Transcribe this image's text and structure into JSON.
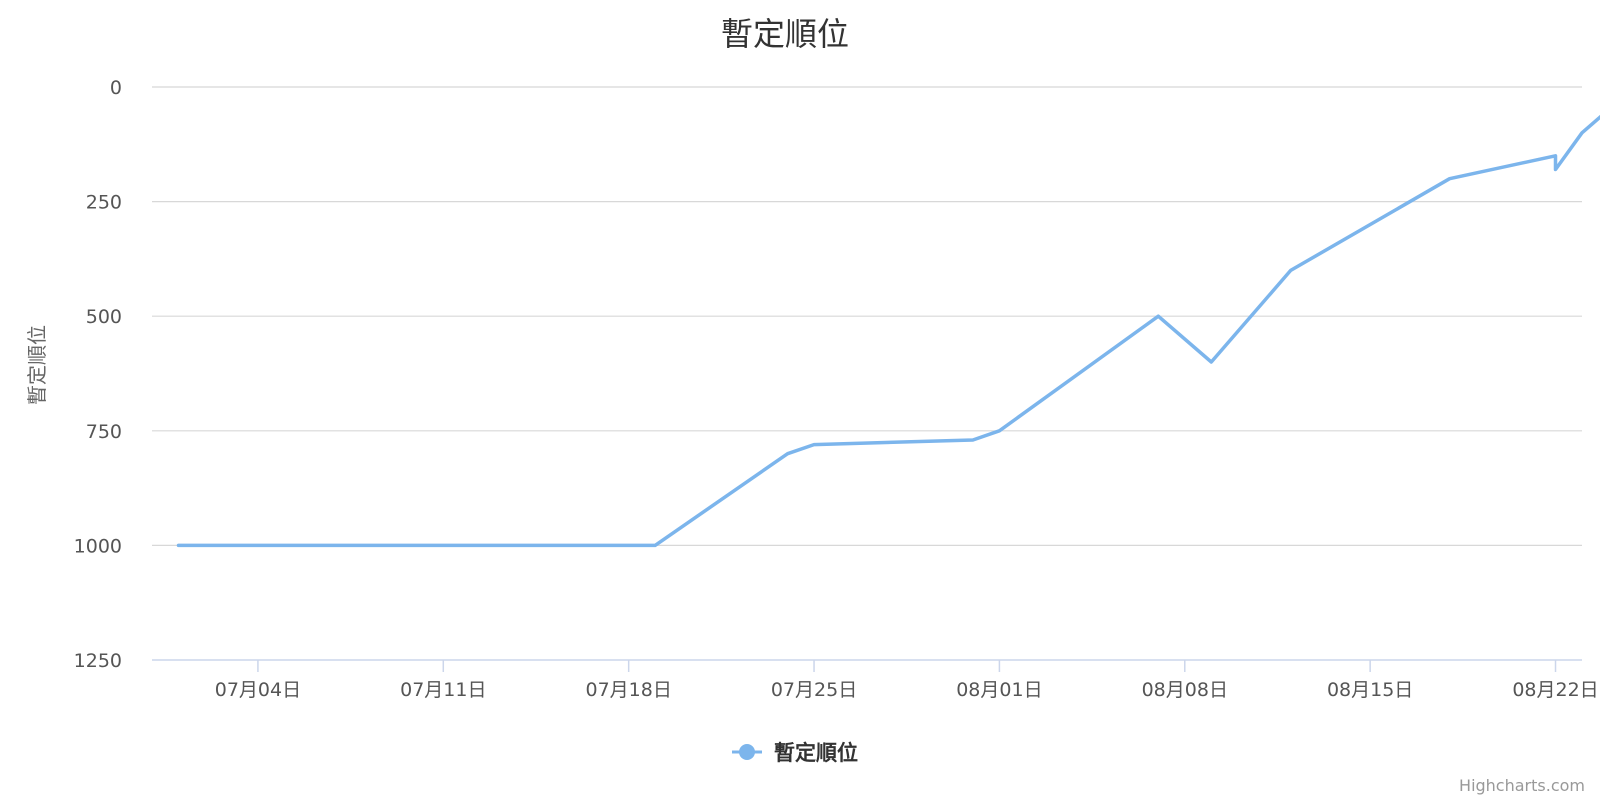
{
  "chart_data": {
    "type": "line",
    "title": "暫定順位",
    "ylabel": "暫定順位",
    "y_reversed": true,
    "ylim": [
      0,
      1250
    ],
    "y_ticks": [
      0,
      250,
      500,
      750,
      1000,
      1250
    ],
    "y_tick_labels": [
      "0",
      "250",
      "500",
      "750",
      "1000",
      "1250"
    ],
    "xlim": [
      "2020-06-30",
      "2020-08-23"
    ],
    "x_ticks": [
      "2020-07-04",
      "2020-07-11",
      "2020-07-18",
      "2020-07-25",
      "2020-08-01",
      "2020-08-08",
      "2020-08-15",
      "2020-08-22"
    ],
    "x_tick_labels": [
      "07月04日",
      "07月11日",
      "07月18日",
      "07月25日",
      "08月01日",
      "08月08日",
      "08月15日",
      "08月22日"
    ],
    "grid": true,
    "legend": "bottom-center",
    "series": [
      {
        "name": "暫定順位",
        "color": "#7cb5ec",
        "x": [
          "2020-07-01",
          "2020-07-19",
          "2020-07-24",
          "2020-07-25",
          "2020-07-31",
          "2020-08-01",
          "2020-08-07",
          "2020-08-09",
          "2020-08-12",
          "2020-08-18",
          "2020-08-22",
          "2020-08-22",
          "2020-08-23",
          "2020-08-24"
        ],
        "values": [
          1000,
          1000,
          800,
          780,
          770,
          750,
          500,
          600,
          400,
          200,
          150,
          180,
          100,
          50
        ]
      }
    ]
  },
  "credits": "Highcharts.com"
}
